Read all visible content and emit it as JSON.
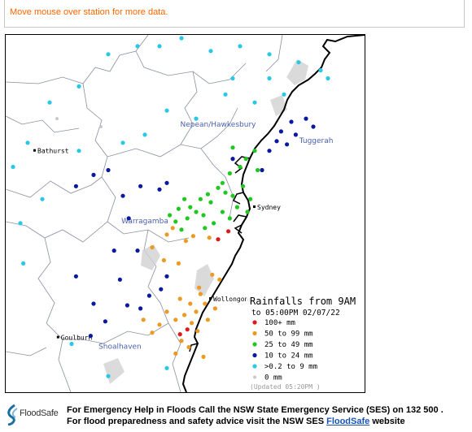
{
  "hint": "Move mouse over station for more data.",
  "map": {
    "regions": [
      {
        "name": "Nepean/Hawkesbury",
        "x": 150.95,
        "y": -33.35
      },
      {
        "name": "Tuggerah",
        "x": 151.62,
        "y": -33.45
      },
      {
        "name": "Warragamba",
        "x": 150.45,
        "y": -33.95
      },
      {
        "name": "Shoalhaven",
        "x": 150.28,
        "y": -34.73
      }
    ],
    "towns": [
      {
        "name": "Bathurst",
        "x": 149.7,
        "y": -33.5
      },
      {
        "name": "Sydney",
        "x": 151.2,
        "y": -33.85
      },
      {
        "name": "Wollongong",
        "x": 150.9,
        "y": -34.42
      },
      {
        "name": "Goulburn",
        "x": 149.86,
        "y": -34.66
      }
    ],
    "stations": {
      "100+": [
        [
          150.95,
          -34.05
        ],
        [
          151.02,
          -34.0
        ],
        [
          150.69,
          -34.64
        ],
        [
          150.74,
          -34.61
        ]
      ],
      "50-99": [
        [
          150.6,
          -34.02
        ],
        [
          150.64,
          -33.98
        ],
        [
          150.78,
          -34.03
        ],
        [
          150.73,
          -34.06
        ],
        [
          150.89,
          -34.04
        ],
        [
          150.68,
          -34.2
        ],
        [
          150.58,
          -34.18
        ],
        [
          150.5,
          -34.1
        ],
        [
          150.96,
          -34.3
        ],
        [
          150.91,
          -34.27
        ],
        [
          150.82,
          -34.35
        ],
        [
          150.86,
          -34.45
        ],
        [
          150.8,
          -34.5
        ],
        [
          150.72,
          -34.52
        ],
        [
          150.66,
          -34.55
        ],
        [
          150.6,
          -34.5
        ],
        [
          150.55,
          -34.58
        ],
        [
          150.77,
          -34.57
        ],
        [
          150.81,
          -34.62
        ],
        [
          150.7,
          -34.68
        ],
        [
          150.75,
          -34.72
        ],
        [
          150.66,
          -34.76
        ],
        [
          150.5,
          -34.63
        ],
        [
          150.44,
          -34.55
        ],
        [
          150.85,
          -34.78
        ],
        [
          150.88,
          -34.55
        ],
        [
          150.93,
          -34.48
        ],
        [
          150.83,
          -34.39
        ],
        [
          150.76,
          -34.45
        ],
        [
          150.69,
          -34.42
        ]
      ],
      "25-49": [
        [
          151.14,
          -33.55
        ],
        [
          151.1,
          -33.6
        ],
        [
          151.2,
          -33.5
        ],
        [
          151.05,
          -33.48
        ],
        [
          150.98,
          -33.7
        ],
        [
          151.0,
          -33.76
        ],
        [
          150.95,
          -33.73
        ],
        [
          150.88,
          -33.77
        ],
        [
          150.83,
          -33.8
        ],
        [
          150.9,
          -33.82
        ],
        [
          150.76,
          -33.85
        ],
        [
          150.8,
          -33.88
        ],
        [
          150.72,
          -33.8
        ],
        [
          150.68,
          -33.86
        ],
        [
          150.62,
          -33.9
        ],
        [
          150.66,
          -33.94
        ],
        [
          150.74,
          -33.92
        ],
        [
          150.85,
          -33.9
        ],
        [
          151.05,
          -33.78
        ],
        [
          151.12,
          -33.72
        ],
        [
          151.17,
          -33.8
        ],
        [
          151.15,
          -33.88
        ],
        [
          151.08,
          -33.85
        ],
        [
          151.03,
          -33.92
        ],
        [
          150.98,
          -33.88
        ],
        [
          150.92,
          -33.95
        ],
        [
          150.86,
          -33.98
        ],
        [
          150.7,
          -33.99
        ],
        [
          151.22,
          -33.62
        ],
        [
          151.03,
          -33.64
        ]
      ],
      "10-24": [
        [
          151.55,
          -33.3
        ],
        [
          151.6,
          -33.35
        ],
        [
          151.48,
          -33.4
        ],
        [
          151.42,
          -33.46
        ],
        [
          151.35,
          -33.44
        ],
        [
          151.3,
          -33.5
        ],
        [
          151.38,
          -33.38
        ],
        [
          151.45,
          -33.32
        ],
        [
          151.25,
          -33.62
        ],
        [
          151.05,
          -33.55
        ],
        [
          150.2,
          -33.62
        ],
        [
          150.1,
          -33.65
        ],
        [
          149.98,
          -33.72
        ],
        [
          150.3,
          -33.78
        ],
        [
          150.42,
          -33.72
        ],
        [
          150.55,
          -33.74
        ],
        [
          150.6,
          -33.7
        ],
        [
          150.34,
          -33.92
        ],
        [
          150.24,
          -34.12
        ],
        [
          150.4,
          -34.12
        ],
        [
          150.28,
          -34.3
        ],
        [
          149.98,
          -34.28
        ],
        [
          150.1,
          -34.45
        ],
        [
          150.33,
          -34.46
        ],
        [
          150.18,
          -34.56
        ],
        [
          150.08,
          -34.65
        ],
        [
          150.42,
          -34.48
        ],
        [
          150.6,
          -34.28
        ],
        [
          150.56,
          -34.36
        ],
        [
          150.48,
          -34.4
        ]
      ],
      "0.2-9": [
        [
          150.4,
          -32.85
        ],
        [
          150.55,
          -32.85
        ],
        [
          150.7,
          -32.8
        ],
        [
          150.9,
          -32.88
        ],
        [
          151.1,
          -32.85
        ],
        [
          151.3,
          -32.9
        ],
        [
          151.5,
          -32.95
        ],
        [
          151.65,
          -33.0
        ],
        [
          151.7,
          -33.05
        ],
        [
          150.2,
          -32.9
        ],
        [
          150.0,
          -33.1
        ],
        [
          149.8,
          -33.2
        ],
        [
          149.65,
          -33.45
        ],
        [
          149.55,
          -33.6
        ],
        [
          149.75,
          -33.8
        ],
        [
          150.0,
          -33.5
        ],
        [
          150.6,
          -33.25
        ],
        [
          150.8,
          -33.3
        ],
        [
          151.0,
          -33.15
        ],
        [
          151.2,
          -33.2
        ],
        [
          151.4,
          -33.15
        ],
        [
          150.3,
          -33.45
        ],
        [
          149.62,
          -34.2
        ],
        [
          149.95,
          -34.7
        ],
        [
          150.2,
          -34.9
        ],
        [
          150.6,
          -34.85
        ],
        [
          151.3,
          -33.05
        ],
        [
          151.05,
          -33.05
        ],
        [
          150.45,
          -33.4
        ],
        [
          149.6,
          -33.95
        ]
      ],
      "0": [
        [
          149.85,
          -33.3
        ],
        [
          150.15,
          -33.35
        ]
      ]
    }
  },
  "legend": {
    "title": "Rainfalls from 9AM",
    "subtitle": "to 05:00PM 02/07/22",
    "items": [
      {
        "key": "100+",
        "label": "100+ mm",
        "color": "#dd1a1a"
      },
      {
        "key": "50-99",
        "label": "50  to 99 mm",
        "color": "#eb9a22"
      },
      {
        "key": "25-49",
        "label": "25  to 49 mm",
        "color": "#1ec81e"
      },
      {
        "key": "10-24",
        "label": "10  to 24 mm",
        "color": "#0a1a9e"
      },
      {
        "key": "0.2-9",
        "label": ">0.2 to 9 mm",
        "color": "#28c8e6"
      },
      {
        "key": "0",
        "label": "0 mm",
        "color": "#c8c8c8"
      }
    ],
    "updated": "(Updated 05:20PM )"
  },
  "footer": {
    "logo_text": "FloodSafe",
    "line1": "For Emergency Help in Floods Call the NSW State Emergency Service (SES) on 132 500 .",
    "line2_prefix": "For flood preparedness and safety advice visit the NSW SES ",
    "line2_link": "FloodSafe",
    "line2_suffix": " website"
  }
}
